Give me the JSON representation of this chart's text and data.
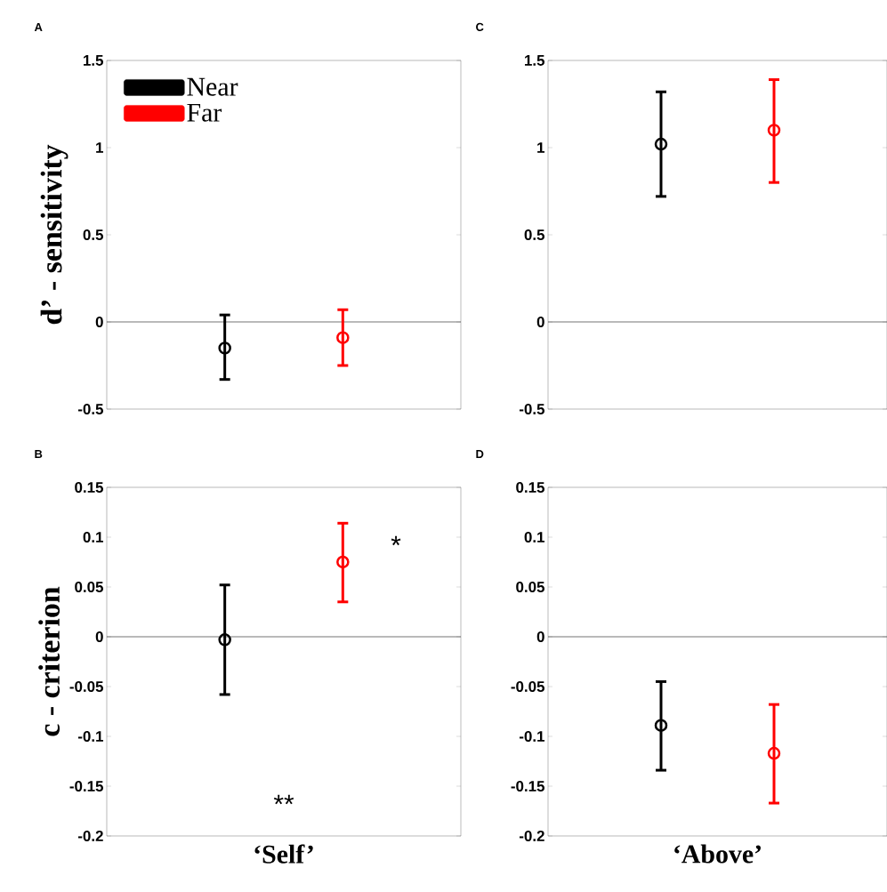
{
  "chart_data": [
    {
      "type": "scatter",
      "title": "A",
      "ylabel": "d’ - sensitivity",
      "categories": [
        null,
        null
      ],
      "series": [
        {
          "name": "Near",
          "color": "#000000",
          "values": [
            -0.15,
            null
          ],
          "errors": [
            [
              -0.33,
              0.04
            ],
            null
          ]
        },
        {
          "name": "Far",
          "color": "#ff0000",
          "values": [
            null,
            -0.09
          ],
          "errors": [
            null,
            [
              -0.25,
              0.07
            ]
          ]
        }
      ],
      "ylim": [
        -0.5,
        1.5
      ],
      "yticks": [
        -0.5,
        0,
        0.5,
        1,
        1.5
      ],
      "ref_lines": [
        {
          "axis": "y",
          "value": 0
        }
      ],
      "marker": "circle",
      "grid": false,
      "legend": "top left",
      "tick_labels": "y"
    },
    {
      "type": "scatter",
      "title": "C",
      "categories": [
        null,
        null
      ],
      "series": [
        {
          "color": "#000000",
          "values": [
            1.02,
            null
          ],
          "errors": [
            [
              0.72,
              1.32
            ],
            null
          ]
        },
        {
          "color": "#ff0000",
          "values": [
            null,
            1.1
          ],
          "errors": [
            null,
            [
              0.8,
              1.39
            ]
          ]
        }
      ],
      "ylim": [
        -0.5,
        1.5
      ],
      "yticks": [
        -0.5,
        0,
        0.5,
        1,
        1.5
      ],
      "ref_lines": [
        {
          "axis": "y",
          "value": 0
        }
      ],
      "marker": "circle",
      "grid": false,
      "tick_labels": "y"
    },
    {
      "type": "scatter",
      "title": "B",
      "ylabel": "c - criterion",
      "xlabel": "‘Self’",
      "categories": [
        null,
        null
      ],
      "series": [
        {
          "color": "#000000",
          "values": [
            -0.003,
            null
          ],
          "errors": [
            [
              -0.058,
              0.052
            ],
            null
          ]
        },
        {
          "color": "#ff0000",
          "values": [
            null,
            0.075
          ],
          "errors": [
            null,
            [
              0.035,
              0.114
            ]
          ]
        }
      ],
      "ylim": [
        -0.2,
        0.15
      ],
      "yticks": [
        -0.2,
        -0.15,
        -0.1,
        -0.05,
        0,
        0.05,
        0.1,
        0.15
      ],
      "ref_lines": [
        {
          "axis": "y",
          "value": 0
        }
      ],
      "annotations": [
        "*",
        "**"
      ],
      "marker": "circle",
      "grid": false,
      "tick_labels": "y"
    },
    {
      "type": "scatter",
      "title": "D",
      "xlabel": "‘Above’",
      "categories": [
        null,
        null
      ],
      "series": [
        {
          "color": "#000000",
          "values": [
            -0.089,
            null
          ],
          "errors": [
            [
              -0.134,
              -0.045
            ],
            null
          ]
        },
        {
          "color": "#ff0000",
          "values": [
            null,
            -0.117
          ],
          "errors": [
            null,
            [
              -0.167,
              -0.068
            ]
          ]
        }
      ],
      "ylim": [
        -0.2,
        0.15
      ],
      "yticks": [
        -0.2,
        -0.15,
        -0.1,
        -0.05,
        0,
        0.05,
        0.1,
        0.15
      ],
      "ref_lines": [
        {
          "axis": "y",
          "value": 0
        }
      ],
      "marker": "circle",
      "grid": false,
      "tick_labels": "y"
    }
  ]
}
